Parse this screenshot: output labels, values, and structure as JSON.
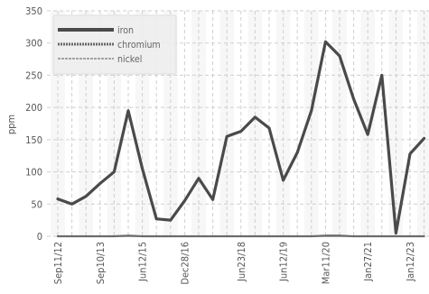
{
  "chart_data": {
    "type": "line",
    "ylabel": "ppm",
    "ylim": [
      0,
      350
    ],
    "yticks": [
      0,
      50,
      100,
      150,
      200,
      250,
      300,
      350
    ],
    "xtick_labels": [
      "Sep11/12",
      "Sep10/13",
      "Jun12/15",
      "Dec28/16",
      "Jun23/18",
      "Jun12/19",
      "Mar11/20",
      "Jan27/21",
      "Jan12/23"
    ],
    "grid": true,
    "legend_position": "top-left",
    "series": [
      {
        "name": "iron",
        "color": "#4a4a4a",
        "values": [
          58,
          50,
          62,
          82,
          100,
          195,
          105,
          27,
          25,
          55,
          90,
          57,
          155,
          163,
          185,
          168,
          87,
          130,
          195,
          302,
          280,
          213,
          158,
          250,
          5,
          128,
          152
        ]
      },
      {
        "name": "chromium",
        "color": "#6a6a6a",
        "values": [
          0,
          0,
          0,
          0,
          0,
          1,
          0,
          0,
          0,
          0,
          0,
          0,
          0,
          0,
          0,
          0,
          0,
          0,
          0,
          1,
          1,
          0,
          0,
          0,
          0,
          0,
          0
        ]
      },
      {
        "name": "nickel",
        "color": "#8a8a8a",
        "values": [
          0,
          0,
          0,
          0,
          0,
          0,
          0,
          0,
          0,
          0,
          0,
          0,
          0,
          0,
          0,
          0,
          0,
          0,
          0,
          0,
          0,
          0,
          0,
          0,
          0,
          0,
          0
        ]
      }
    ]
  }
}
